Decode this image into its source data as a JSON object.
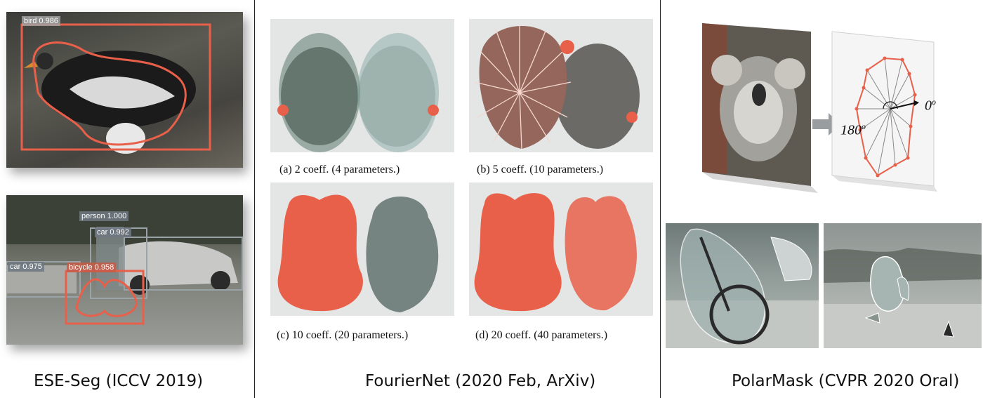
{
  "sections": {
    "ese_seg": {
      "title": "ESE-Seg (ICCV 2019)"
    },
    "fouriernet": {
      "title": "FourierNet (2020 Feb, ArXiv)"
    },
    "polarmask": {
      "title": "PolarMask (CVPR 2020 Oral)"
    }
  },
  "ese_seg_detections": {
    "top": [
      {
        "label": "bird 0.986"
      }
    ],
    "bottom": [
      {
        "label": "person 1.000"
      },
      {
        "label": "car 0.992"
      },
      {
        "label": "car 0.975"
      },
      {
        "label": "bicycle 0.958"
      }
    ]
  },
  "fouriernet_captions": [
    "(a) 2 coeff. (4 parameters.)",
    "(b) 5 coeff. (10 parameters.)",
    "(c) 10 coeff. (20 parameters.)",
    "(d) 20 coeff. (40 parameters.)"
  ],
  "polarmask_angles": {
    "zero": "0",
    "one_eighty": "180",
    "degree_mark": "o"
  },
  "colors": {
    "mask_orange": "#e8604a",
    "box_gray": "#9aa3a8",
    "ray_gray": "#888888",
    "divider": "#222222"
  }
}
